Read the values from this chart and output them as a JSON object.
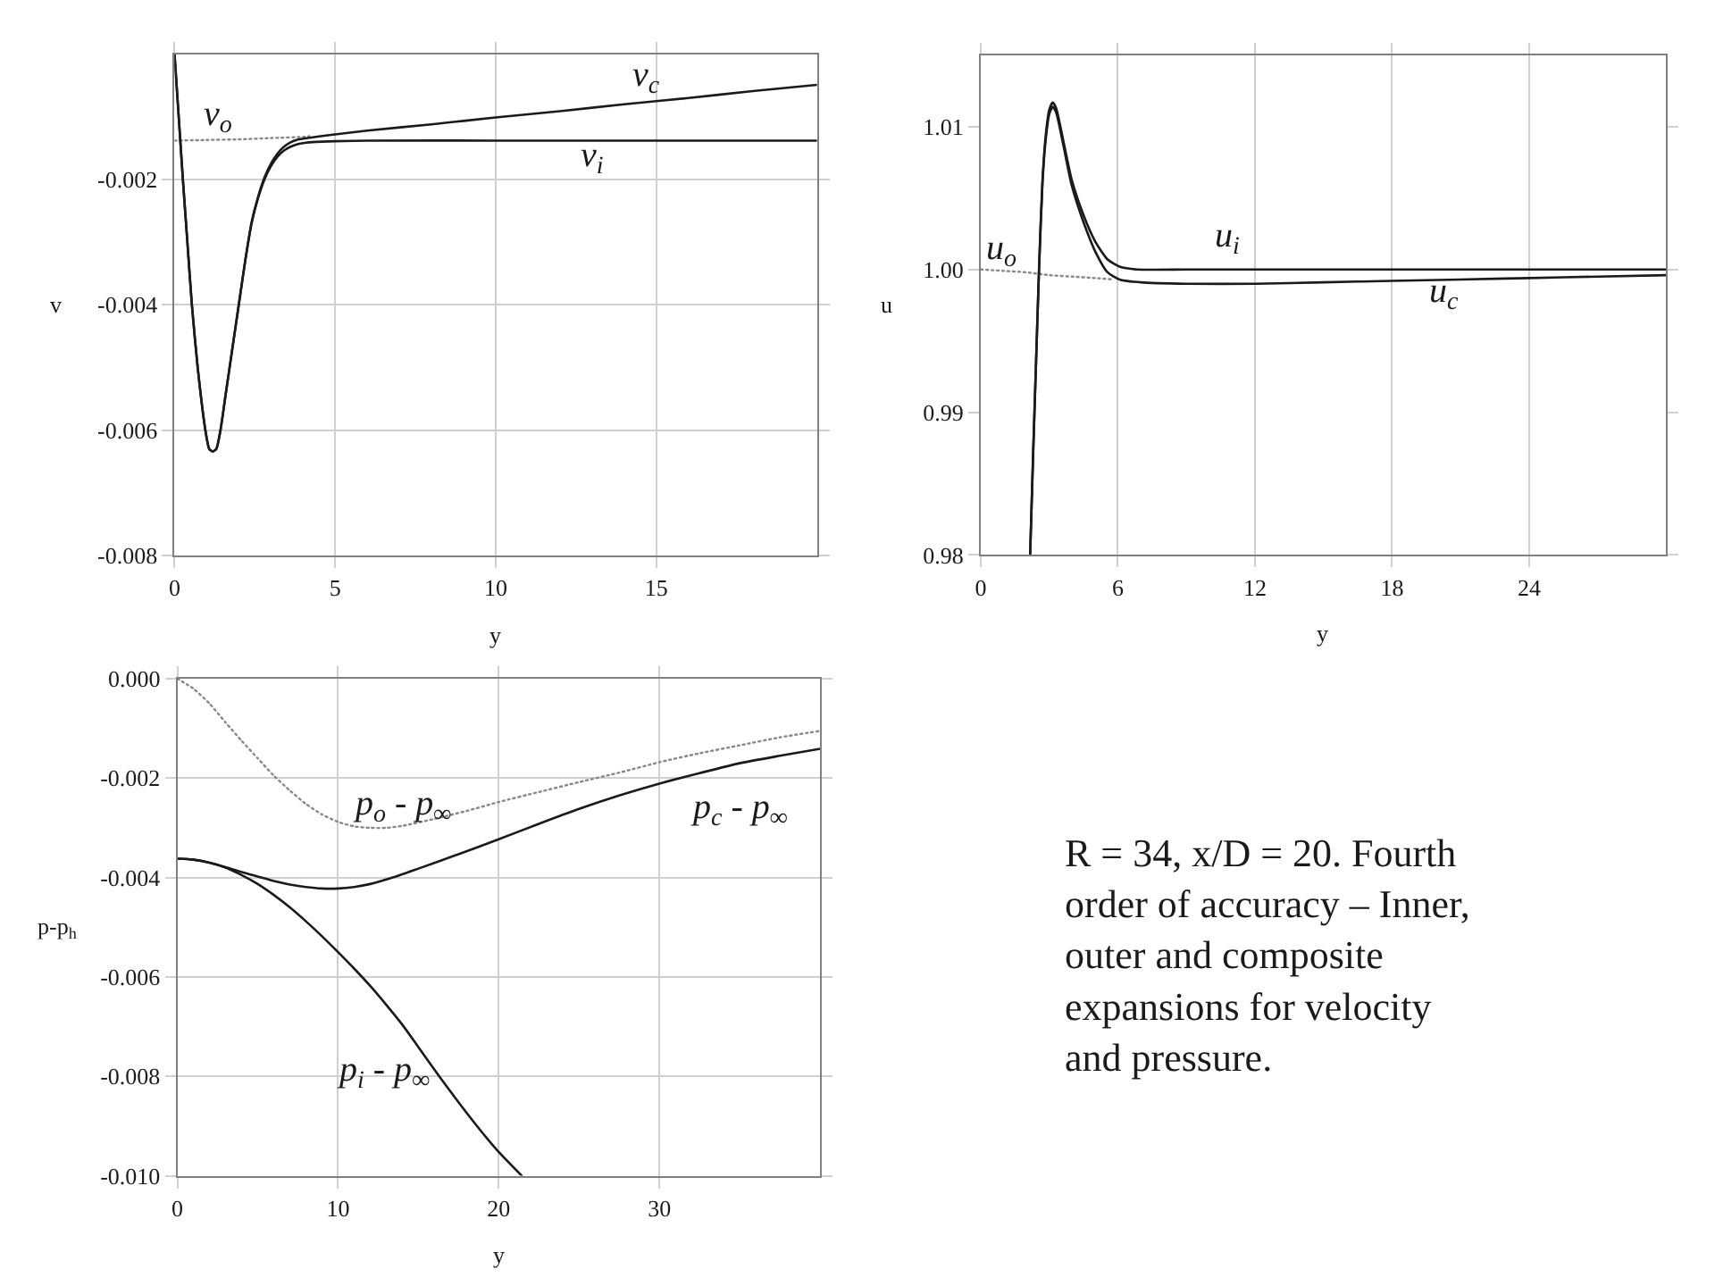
{
  "chart_data": [
    {
      "type": "line",
      "xlabel": "y",
      "ylabel": "v",
      "xlim": [
        0,
        20
      ],
      "xticks": [
        0,
        5,
        10,
        15
      ],
      "ylim": [
        -0.008,
        0
      ],
      "yticks": [
        -0.008,
        -0.006,
        -0.004,
        -0.002
      ],
      "grid": true,
      "line_style": "solid",
      "series": [
        {
          "name": "v$_{o}$",
          "color": "#888888",
          "line_style": "dotted",
          "x": [
            0,
            1,
            2,
            3,
            4,
            4.2
          ],
          "values": [
            -0.00138,
            -0.00137,
            -0.00136,
            -0.00134,
            -0.00132,
            -0.00131
          ]
        },
        {
          "name": "v$_{i}$",
          "color": "#1a1a1a",
          "x": [
            0,
            0.13,
            0.26,
            0.4,
            0.54,
            0.72,
            0.96,
            1.08,
            1.19,
            1.3,
            1.43,
            1.6,
            1.8,
            2.0,
            2.2,
            2.4,
            2.6,
            2.8,
            3.0,
            3.2,
            3.4,
            3.6,
            3.8,
            4.0,
            4.4,
            5,
            6,
            10,
            15,
            20
          ],
          "values": [
            0,
            -0.001,
            -0.002,
            -0.003,
            -0.004,
            -0.005,
            -0.006,
            -0.0063,
            -0.00634,
            -0.0063,
            -0.006,
            -0.0054,
            -0.0047,
            -0.004,
            -0.0033,
            -0.0027,
            -0.0023,
            -0.002,
            -0.00179,
            -0.00164,
            -0.00154,
            -0.00148,
            -0.00144,
            -0.00142,
            -0.0014,
            -0.00139,
            -0.00138,
            -0.00138,
            -0.00138,
            -0.00138
          ]
        },
        {
          "name": "v$_{c}$",
          "color": "#1a1a1a",
          "x": [
            0,
            0.13,
            0.26,
            0.4,
            0.54,
            0.72,
            0.96,
            1.08,
            1.19,
            1.3,
            1.43,
            1.6,
            1.8,
            2.0,
            2.2,
            2.4,
            2.6,
            2.8,
            3.0,
            3.2,
            3.4,
            3.6,
            3.8,
            4.0,
            4.4,
            5,
            6,
            8,
            10,
            12,
            14,
            16,
            18,
            20
          ],
          "values": [
            0,
            -0.001,
            -0.002,
            -0.003,
            -0.004,
            -0.005,
            -0.006,
            -0.0063,
            -0.00634,
            -0.0063,
            -0.006,
            -0.0054,
            -0.0047,
            -0.004,
            -0.0033,
            -0.00268,
            -0.00228,
            -0.00197,
            -0.00175,
            -0.00159,
            -0.00148,
            -0.00141,
            -0.00137,
            -0.00135,
            -0.00132,
            -0.00128,
            -0.00122,
            -0.00112,
            -0.00101,
            -0.00091,
            -0.0008,
            -0.0007,
            -0.00059,
            -0.00049
          ]
        }
      ]
    },
    {
      "type": "line",
      "xlabel": "y",
      "ylabel": "u",
      "xlim": [
        0,
        30
      ],
      "xticks": [
        0,
        6,
        12,
        18,
        24
      ],
      "ylim": [
        0.98,
        1.015
      ],
      "yticks": [
        0.98,
        0.99,
        {
          "value": 1,
          "label": "1.00"
        },
        1.01
      ],
      "grid": "x",
      "line_style": "solid",
      "series": [
        {
          "name": "u$_{o}$",
          "color": "#888888",
          "line_style": "dotted",
          "x": [
            0,
            1,
            2,
            3,
            4,
            5,
            5.8
          ],
          "values": [
            1.0,
            0.9999,
            0.9998,
            0.9996,
            0.9995,
            0.9994,
            0.9993
          ]
        },
        {
          "name": "u$_{i}$",
          "color": "#1a1a1a",
          "x": [
            2.16,
            2.3,
            2.42,
            2.55,
            2.7,
            2.85,
            3.0,
            3.15,
            3.3,
            3.59,
            3.98,
            4.5,
            5.03,
            5.55,
            6.07,
            6.85,
            9,
            12,
            18,
            24,
            30
          ],
          "values": [
            0.98,
            0.9875,
            0.9935,
            1.0,
            1.0062,
            1.0095,
            1.0112,
            1.0117,
            1.0113,
            1.0092,
            1.0063,
            1.0038,
            1.0019,
            1.0007,
            1.0002,
            1.0,
            1.0,
            1.0,
            1.0,
            1.0,
            1.0
          ]
        },
        {
          "name": "u$_{c}$",
          "color": "#1a1a1a",
          "x": [
            2.16,
            2.3,
            2.42,
            2.55,
            2.7,
            2.85,
            3.0,
            3.15,
            3.3,
            3.59,
            3.98,
            4.5,
            5.03,
            5.55,
            6.07,
            7,
            9,
            12,
            15,
            18,
            21,
            24,
            27,
            30
          ],
          "values": [
            0.98,
            0.9875,
            0.9935,
            1.0,
            1.006,
            1.0092,
            1.0109,
            1.0114,
            1.011,
            1.0089,
            1.0059,
            1.0033,
            1.0012,
            0.9998,
            0.9993,
            0.9991,
            0.999,
            0.999,
            0.9991,
            0.9992,
            0.9993,
            0.9994,
            0.9995,
            0.9996
          ]
        }
      ]
    },
    {
      "type": "line",
      "xlabel": "y",
      "ylabel": "p-p$_{h}$",
      "xlim": [
        0,
        40
      ],
      "xticks": [
        0,
        10,
        20,
        30
      ],
      "ylim": [
        -0.01,
        0
      ],
      "yticks": [
        {
          "value": -0.01,
          "label": "-0.010"
        },
        -0.008,
        -0.006,
        -0.004,
        -0.002,
        {
          "value": 0,
          "label": "0.000"
        }
      ],
      "grid": true,
      "line_style": "solid",
      "series": [
        {
          "name": "p$_{o}$ - p$_{∞}$",
          "color": "#888888",
          "line_style": "dotted",
          "x": [
            0,
            1,
            2,
            3,
            4,
            5,
            6,
            7,
            8,
            9,
            10,
            11,
            12,
            13,
            14,
            16,
            18,
            20,
            22.5,
            25,
            27.5,
            30,
            32.5,
            35,
            37.5,
            40
          ],
          "values": [
            0,
            -0.0002,
            -0.0005,
            -0.00088,
            -0.00125,
            -0.0016,
            -0.00195,
            -0.00225,
            -0.00252,
            -0.00273,
            -0.00288,
            -0.00297,
            -0.003,
            -0.003,
            -0.00296,
            -0.00282,
            -0.00266,
            -0.00248,
            -0.00228,
            -0.00208,
            -0.00189,
            -0.00168,
            -0.0015,
            -0.00134,
            -0.00118,
            -0.00105
          ]
        },
        {
          "name": "p$_{c}$ - p$_{∞}$",
          "color": "#1a1a1a",
          "x": [
            0,
            1,
            2,
            3,
            4,
            5,
            6,
            7,
            8,
            9,
            10,
            11,
            12,
            13.5,
            15,
            17.5,
            20,
            22.5,
            25,
            27.5,
            30,
            32.5,
            35,
            37.5,
            40
          ],
          "values": [
            -0.00362,
            -0.00364,
            -0.0037,
            -0.00379,
            -0.00389,
            -0.00398,
            -0.00407,
            -0.00414,
            -0.00419,
            -0.00422,
            -0.00422,
            -0.00419,
            -0.00413,
            -0.00399,
            -0.00382,
            -0.00353,
            -0.00323,
            -0.00292,
            -0.00262,
            -0.00235,
            -0.00211,
            -0.0019,
            -0.0017,
            -0.00155,
            -0.00141
          ]
        },
        {
          "name": "p$_{i}$ - p$_{∞}$",
          "color": "#1a1a1a",
          "x": [
            0,
            1,
            2,
            3,
            4,
            5,
            6,
            7,
            8,
            9,
            10,
            11,
            12,
            13,
            14,
            15,
            16.3,
            17.5,
            18.9,
            20,
            21.44
          ],
          "values": [
            -0.00362,
            -0.00364,
            -0.0037,
            -0.0038,
            -0.00395,
            -0.00413,
            -0.00435,
            -0.0046,
            -0.00488,
            -0.00518,
            -0.0055,
            -0.00583,
            -0.00618,
            -0.00656,
            -0.00696,
            -0.00741,
            -0.008,
            -0.00852,
            -0.0091,
            -0.00952,
            -0.01
          ]
        }
      ]
    },
    {
      "type": "other",
      "annotations": [
        "R = 34, x/D = 20. Fourth order of accuracy – Inner, outer and composite expansions for velocity and pressure."
      ]
    }
  ]
}
